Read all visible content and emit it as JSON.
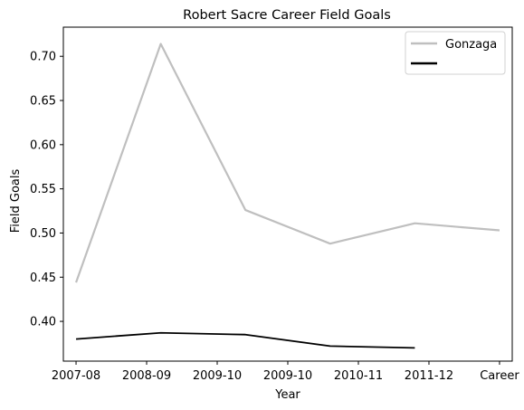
{
  "chart_data": {
    "type": "line",
    "title": "Robert Sacre Career Field Goals",
    "xlabel": "Year",
    "ylabel": "Field Goals",
    "x_tick_labels": [
      "2007-08",
      "2008-09",
      "2009-10",
      "2009-10",
      "2010-11",
      "2011-12",
      "Career"
    ],
    "x_range": [
      -0.3,
      10.3
    ],
    "ylim": [
      0.355,
      0.733
    ],
    "y_ticks": [
      0.4,
      0.45,
      0.5,
      0.55,
      0.6,
      0.65,
      0.7
    ],
    "y_tick_labels": [
      "0.40",
      "0.45",
      "0.50",
      "0.55",
      "0.60",
      "0.65",
      "0.70"
    ],
    "grid": false,
    "legend_position": "top-right",
    "series": [
      {
        "name": "Gonzaga",
        "color": "#bfbfbf",
        "x": [
          0,
          2,
          4,
          6,
          8,
          10
        ],
        "y": [
          0.444,
          0.714,
          0.526,
          0.488,
          0.511,
          0.503
        ]
      },
      {
        "name": "",
        "color": "#000000",
        "x": [
          0,
          2,
          4,
          6,
          8
        ],
        "y": [
          0.38,
          0.387,
          0.385,
          0.372,
          0.37
        ]
      }
    ]
  }
}
